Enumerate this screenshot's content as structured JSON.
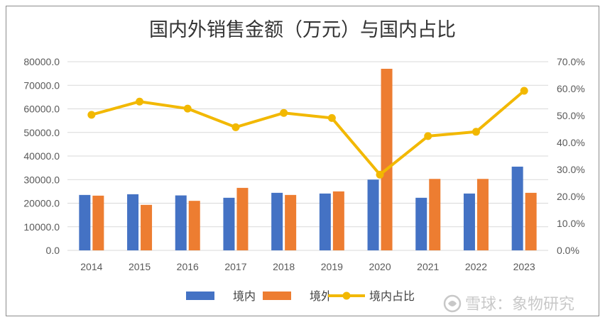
{
  "chart_data": {
    "type": "bar",
    "title": "国内外销售金额（万元）与国内占比",
    "categories": [
      "2014",
      "2015",
      "2016",
      "2017",
      "2018",
      "2019",
      "2020",
      "2021",
      "2022",
      "2023"
    ],
    "series": [
      {
        "name": "境内",
        "type": "bar",
        "axis": "left",
        "color": "#4472c4",
        "values": [
          23500,
          23800,
          23300,
          22300,
          24400,
          24100,
          30000,
          22300,
          24100,
          35500
        ]
      },
      {
        "name": "境外",
        "type": "bar",
        "axis": "left",
        "color": "#ed7d31",
        "values": [
          23200,
          19300,
          21000,
          26500,
          23500,
          25000,
          77000,
          30300,
          30300,
          24400
        ]
      },
      {
        "name": "境内占比",
        "type": "line",
        "axis": "right",
        "color": "#f2b800",
        "values": [
          0.503,
          0.552,
          0.526,
          0.457,
          0.51,
          0.491,
          0.281,
          0.424,
          0.44,
          0.592
        ]
      }
    ],
    "y_left": {
      "min": 0,
      "max": 80000,
      "ticks": [
        "0.0",
        "10000.0",
        "20000.0",
        "30000.0",
        "40000.0",
        "50000.0",
        "60000.0",
        "70000.0",
        "80000.0"
      ]
    },
    "y_right": {
      "min": 0,
      "max": 0.7,
      "ticks": [
        "0.0%",
        "10.0%",
        "20.0%",
        "30.0%",
        "40.0%",
        "50.0%",
        "60.0%",
        "70.0%"
      ]
    },
    "grid": true,
    "legend_position": "bottom"
  },
  "watermark": {
    "text": "雪球：象物研究"
  }
}
